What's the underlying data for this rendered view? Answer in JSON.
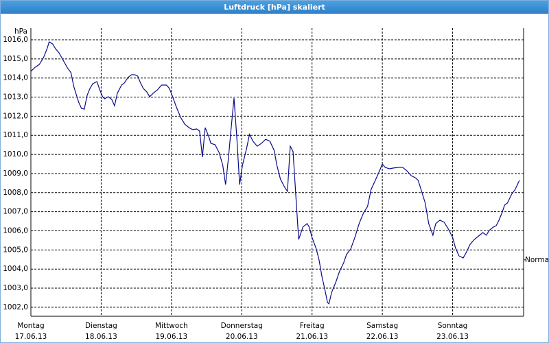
{
  "chart_data": {
    "type": "line",
    "title": "Luftdruck [hPa] skaliert",
    "y_unit": "hPa",
    "color": "#0a0a8c",
    "grid": true,
    "xlim": [
      0,
      7.01
    ],
    "ylim": [
      1001.53,
      1016.61
    ],
    "xticks": [
      {
        "value": 0,
        "label": "Montag"
      },
      {
        "value": 1,
        "label": "Dienstag"
      },
      {
        "value": 2,
        "label": "Mittwoch"
      },
      {
        "value": 3,
        "label": "Donnerstag"
      },
      {
        "value": 4,
        "label": "Freitag"
      },
      {
        "value": 5,
        "label": "Samstag"
      },
      {
        "value": 6,
        "label": "Sonntag"
      }
    ],
    "xtick_dates": [
      "17.06.13",
      "18.06.13",
      "19.06.13",
      "20.06.13",
      "21.06.13",
      "22.06.13",
      "23.06.13"
    ],
    "yticks": [
      {
        "value": 1002,
        "label": "1002,0"
      },
      {
        "value": 1003,
        "label": "1003,0"
      },
      {
        "value": 1004,
        "label": "1004,0"
      },
      {
        "value": 1005,
        "label": "1005,0"
      },
      {
        "value": 1006,
        "label": "1006,0"
      },
      {
        "value": 1007,
        "label": "1007,0"
      },
      {
        "value": 1008,
        "label": "1008,0"
      },
      {
        "value": 1009,
        "label": "1009,0"
      },
      {
        "value": 1010,
        "label": "1010,0"
      },
      {
        "value": 1011,
        "label": "1011,0"
      },
      {
        "value": 1012,
        "label": "1012,0"
      },
      {
        "value": 1013,
        "label": "1013,0"
      },
      {
        "value": 1014,
        "label": "1014,0"
      },
      {
        "value": 1015,
        "label": "1015,0"
      },
      {
        "value": 1016,
        "label": "1016,0"
      }
    ],
    "annotations": [
      {
        "text": "Normal",
        "y": 1004.48
      }
    ],
    "x": [
      0,
      0.06,
      0.12,
      0.18,
      0.23,
      0.26,
      0.31,
      0.35,
      0.4,
      0.45,
      0.52,
      0.57,
      0.61,
      0.64,
      0.68,
      0.72,
      0.76,
      0.8,
      0.84,
      0.88,
      0.94,
      0.98,
      1.02,
      1.05,
      1.1,
      1.15,
      1.19,
      1.23,
      1.29,
      1.33,
      1.38,
      1.43,
      1.48,
      1.52,
      1.56,
      1.6,
      1.65,
      1.69,
      1.74,
      1.8,
      1.86,
      1.93,
      1.97,
      2.01,
      2.07,
      2.13,
      2.19,
      2.25,
      2.3,
      2.36,
      2.4,
      2.44,
      2.48,
      2.53,
      2.56,
      2.62,
      2.68,
      2.73,
      2.77,
      2.81,
      2.85,
      2.89,
      2.93,
      2.97,
      3.01,
      3.07,
      3.11,
      3.16,
      3.22,
      3.28,
      3.34,
      3.4,
      3.46,
      3.5,
      3.55,
      3.61,
      3.65,
      3.69,
      3.73,
      3.77,
      3.81,
      3.87,
      3.93,
      3.96,
      4.0,
      4.06,
      4.1,
      4.14,
      4.18,
      4.22,
      4.24,
      4.28,
      4.34,
      4.39,
      4.45,
      4.49,
      4.55,
      4.61,
      4.67,
      4.73,
      4.79,
      4.84,
      4.9,
      4.96,
      5.0,
      5.04,
      5.1,
      5.16,
      5.23,
      5.29,
      5.35,
      5.41,
      5.47,
      5.51,
      5.55,
      5.61,
      5.66,
      5.72,
      5.76,
      5.82,
      5.88,
      5.94,
      6.0,
      6.04,
      6.09,
      6.15,
      6.19,
      6.25,
      6.31,
      6.37,
      6.43,
      6.48,
      6.52,
      6.58,
      6.62,
      6.66,
      6.7,
      6.74,
      6.78,
      6.84,
      6.89,
      6.95
    ],
    "values": [
      1014.35,
      1014.56,
      1014.71,
      1015.07,
      1015.53,
      1015.89,
      1015.78,
      1015.53,
      1015.32,
      1014.99,
      1014.53,
      1014.28,
      1013.56,
      1013.2,
      1012.73,
      1012.41,
      1012.37,
      1013.09,
      1013.45,
      1013.7,
      1013.81,
      1013.38,
      1013.02,
      1012.91,
      1013.02,
      1012.88,
      1012.55,
      1013.2,
      1013.63,
      1013.74,
      1014.02,
      1014.17,
      1014.17,
      1014.1,
      1013.74,
      1013.45,
      1013.27,
      1013.02,
      1013.2,
      1013.38,
      1013.63,
      1013.63,
      1013.45,
      1013.09,
      1012.48,
      1011.94,
      1011.58,
      1011.4,
      1011.3,
      1011.33,
      1011.22,
      1009.86,
      1011.4,
      1010.94,
      1010.58,
      1010.51,
      1010.08,
      1009.43,
      1008.42,
      1009.79,
      1011.4,
      1012.95,
      1010.87,
      1008.42,
      1009.43,
      1010.33,
      1011.05,
      1010.69,
      1010.43,
      1010.58,
      1010.79,
      1010.69,
      1010.22,
      1009.43,
      1008.71,
      1008.28,
      1008.07,
      1010.43,
      1010.15,
      1007.81,
      1005.55,
      1006.2,
      1006.38,
      1006.2,
      1005.66,
      1005.05,
      1004.48,
      1003.62,
      1002.97,
      1002.25,
      1002.18,
      1002.79,
      1003.33,
      1003.87,
      1004.33,
      1004.76,
      1005.05,
      1005.66,
      1006.38,
      1006.92,
      1007.28,
      1008.17,
      1008.64,
      1009.14,
      1009.5,
      1009.32,
      1009.25,
      1009.29,
      1009.32,
      1009.32,
      1009.14,
      1008.89,
      1008.78,
      1008.64,
      1008.17,
      1007.46,
      1006.38,
      1005.77,
      1006.38,
      1006.56,
      1006.45,
      1006.09,
      1005.66,
      1005.12,
      1004.69,
      1004.58,
      1004.84,
      1005.3,
      1005.55,
      1005.73,
      1005.91,
      1005.77,
      1006.02,
      1006.2,
      1006.27,
      1006.56,
      1006.92,
      1007.35,
      1007.46,
      1007.92,
      1008.17,
      1008.64
    ]
  }
}
